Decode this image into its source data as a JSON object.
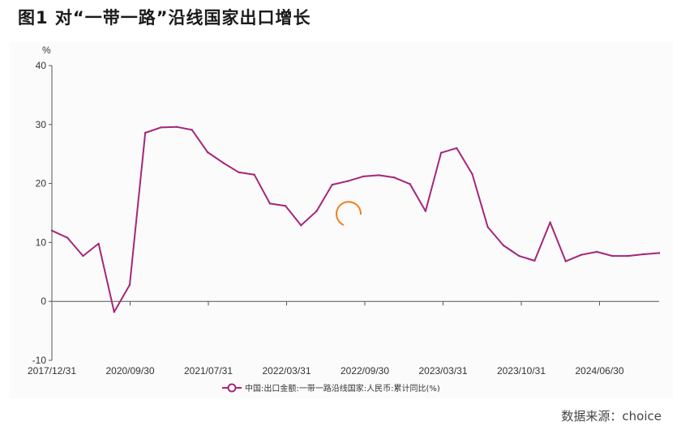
{
  "title": "图1 对“一带一路”沿线国家出口增长",
  "source": "数据来源：choice",
  "colors": {
    "line": "#a6257a",
    "axis": "#555555",
    "spinner": "#f07f1c"
  },
  "chart_data": {
    "type": "line",
    "ylabel": "%",
    "ylim": [
      -10,
      40
    ],
    "yticks": [
      -10,
      0,
      10,
      20,
      30,
      40
    ],
    "xtick_labels": [
      "2017/12/31",
      "2020/09/30",
      "2021/07/31",
      "2022/03/31",
      "2022/09/30",
      "2023/03/31",
      "2023/10/31",
      "2024/06/30"
    ],
    "grid": false,
    "legend": "bottom",
    "series": [
      {
        "name": "中国:出口金额:一带一路沿线国家:人民币:累计同比(%)",
        "values": [
          12,
          10.8,
          7.7,
          9.8,
          -1.8,
          2.8,
          28.6,
          29.5,
          29.6,
          29.1,
          25.3,
          23.5,
          21.9,
          21.5,
          16.6,
          16.2,
          12.9,
          15.3,
          19.8,
          20.4,
          21.2,
          21.4,
          21.0,
          19.9,
          15.3,
          25.2,
          26.0,
          21.6,
          12.6,
          9.5,
          7.7,
          6.9,
          13.4,
          6.8,
          7.9,
          8.4,
          7.7,
          7.7,
          8.0,
          8.2
        ]
      }
    ]
  }
}
